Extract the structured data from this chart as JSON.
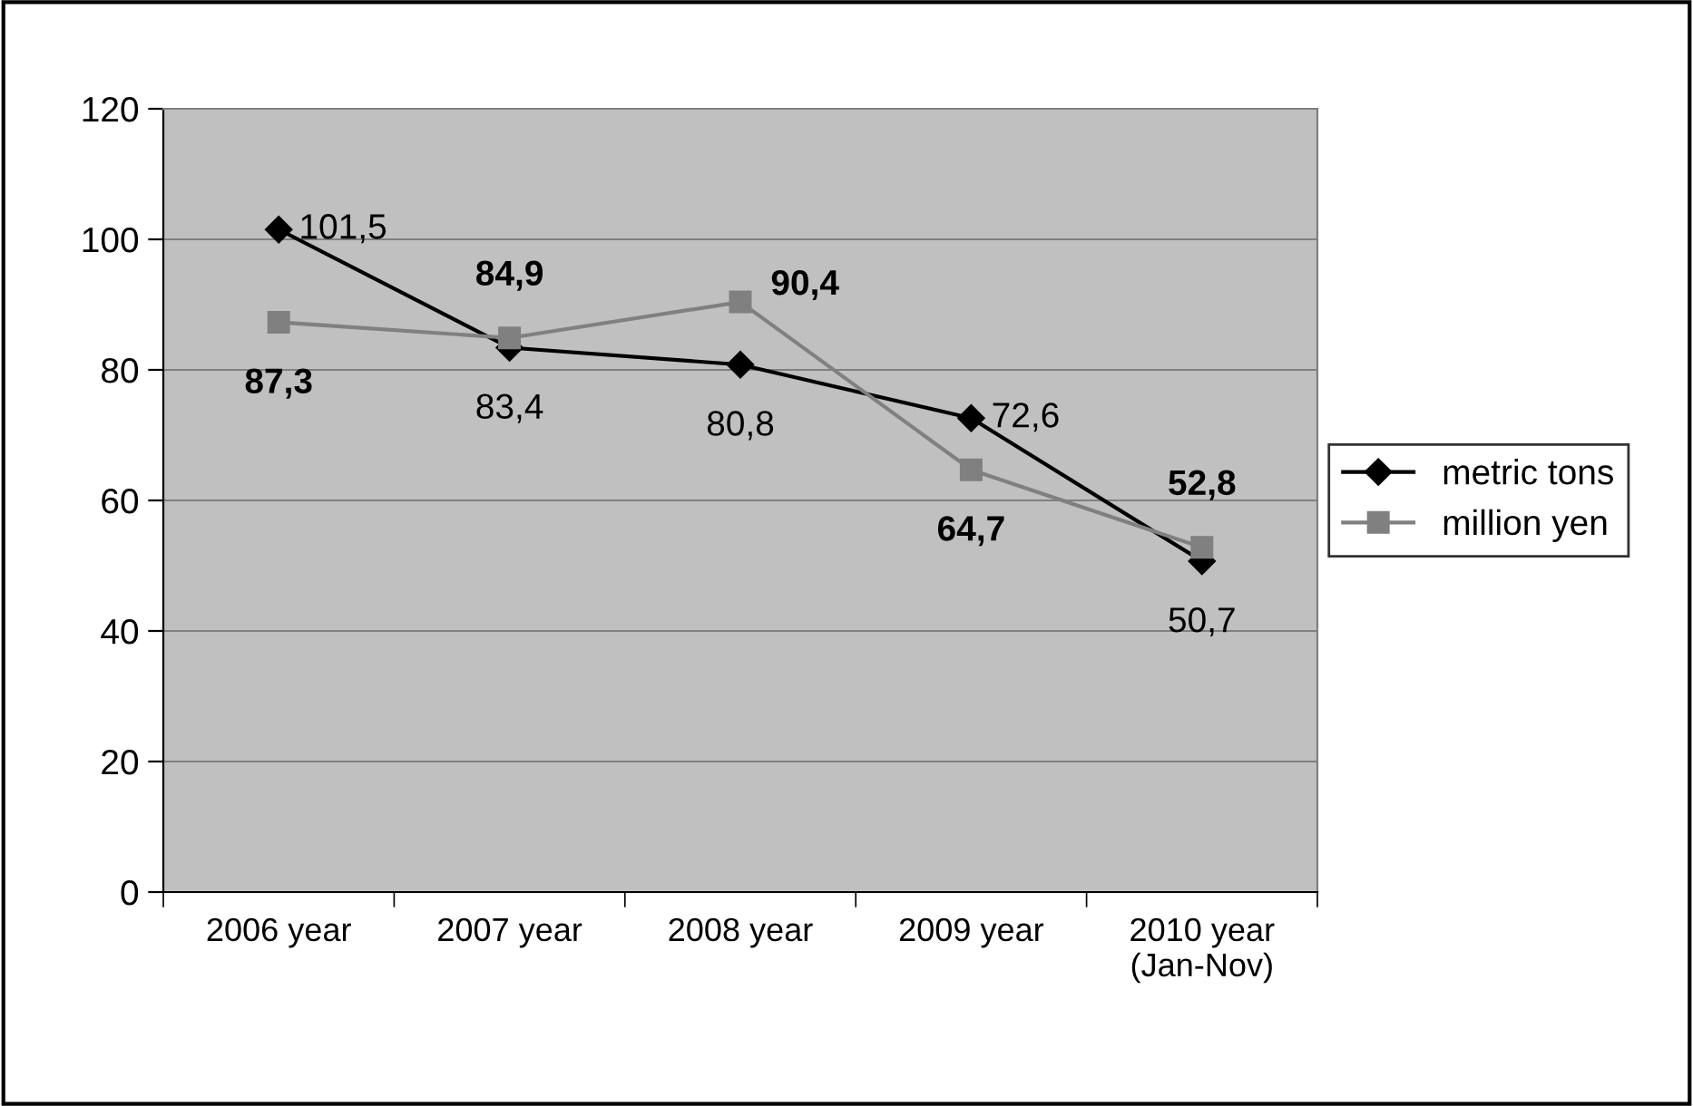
{
  "chart_data": {
    "type": "line",
    "categories": [
      "2006 year",
      "2007 year",
      "2008 year",
      "2009 year",
      "2010 year\n(Jan-Nov)"
    ],
    "series": [
      {
        "name": "metric tons",
        "color": "#000000",
        "marker": "diamond",
        "values": [
          101.5,
          83.4,
          80.8,
          72.6,
          50.7
        ],
        "value_labels": [
          "101,5",
          "83,4",
          "80,8",
          "72,6",
          "50,7"
        ]
      },
      {
        "name": "million yen",
        "color": "#808080",
        "marker": "square",
        "values": [
          87.3,
          84.9,
          90.4,
          64.7,
          52.8
        ],
        "value_labels": [
          "87,3",
          "84,9",
          "90,4",
          "64,7",
          "52,8"
        ]
      }
    ],
    "ylim": [
      0,
      120
    ],
    "yticks": [
      0,
      20,
      40,
      60,
      80,
      100,
      120
    ],
    "grid": "y",
    "legend": "right",
    "line_style": "solid"
  }
}
